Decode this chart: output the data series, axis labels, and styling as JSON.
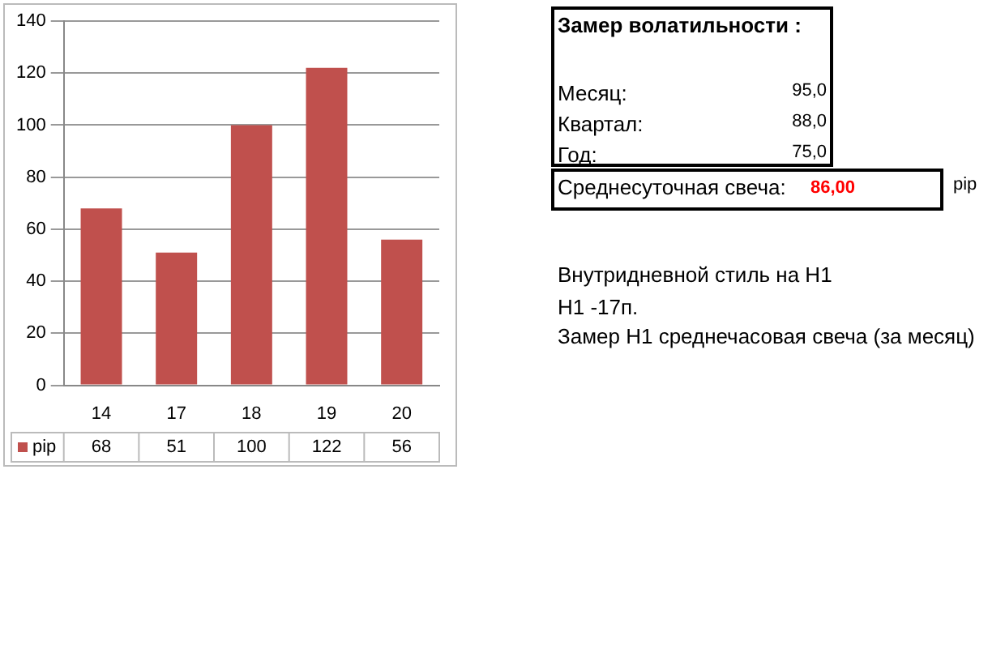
{
  "chart_data": {
    "type": "bar",
    "categories": [
      "14",
      "17",
      "18",
      "19",
      "20"
    ],
    "series": [
      {
        "name": "pip",
        "color": "#c0504d",
        "values": [
          68,
          51,
          100,
          122,
          56
        ]
      }
    ],
    "ylim": [
      0,
      140
    ],
    "yticks": [
      0,
      20,
      40,
      60,
      80,
      100,
      120,
      140
    ],
    "grid": "y",
    "data_labels": true,
    "legend": "bottom",
    "annotations": [
      "Замер  волатильности  :",
      "Месяц:",
      "95,0",
      "Квартал:",
      "88,0",
      "Год:",
      "75,0",
      "Среднесуточная свеча:",
      "86,00",
      "pip",
      "Внутридневной стиль на H1",
      "H1 -17п.",
      "Замер H1 среднечасовая свеча (за месяц)"
    ]
  }
}
